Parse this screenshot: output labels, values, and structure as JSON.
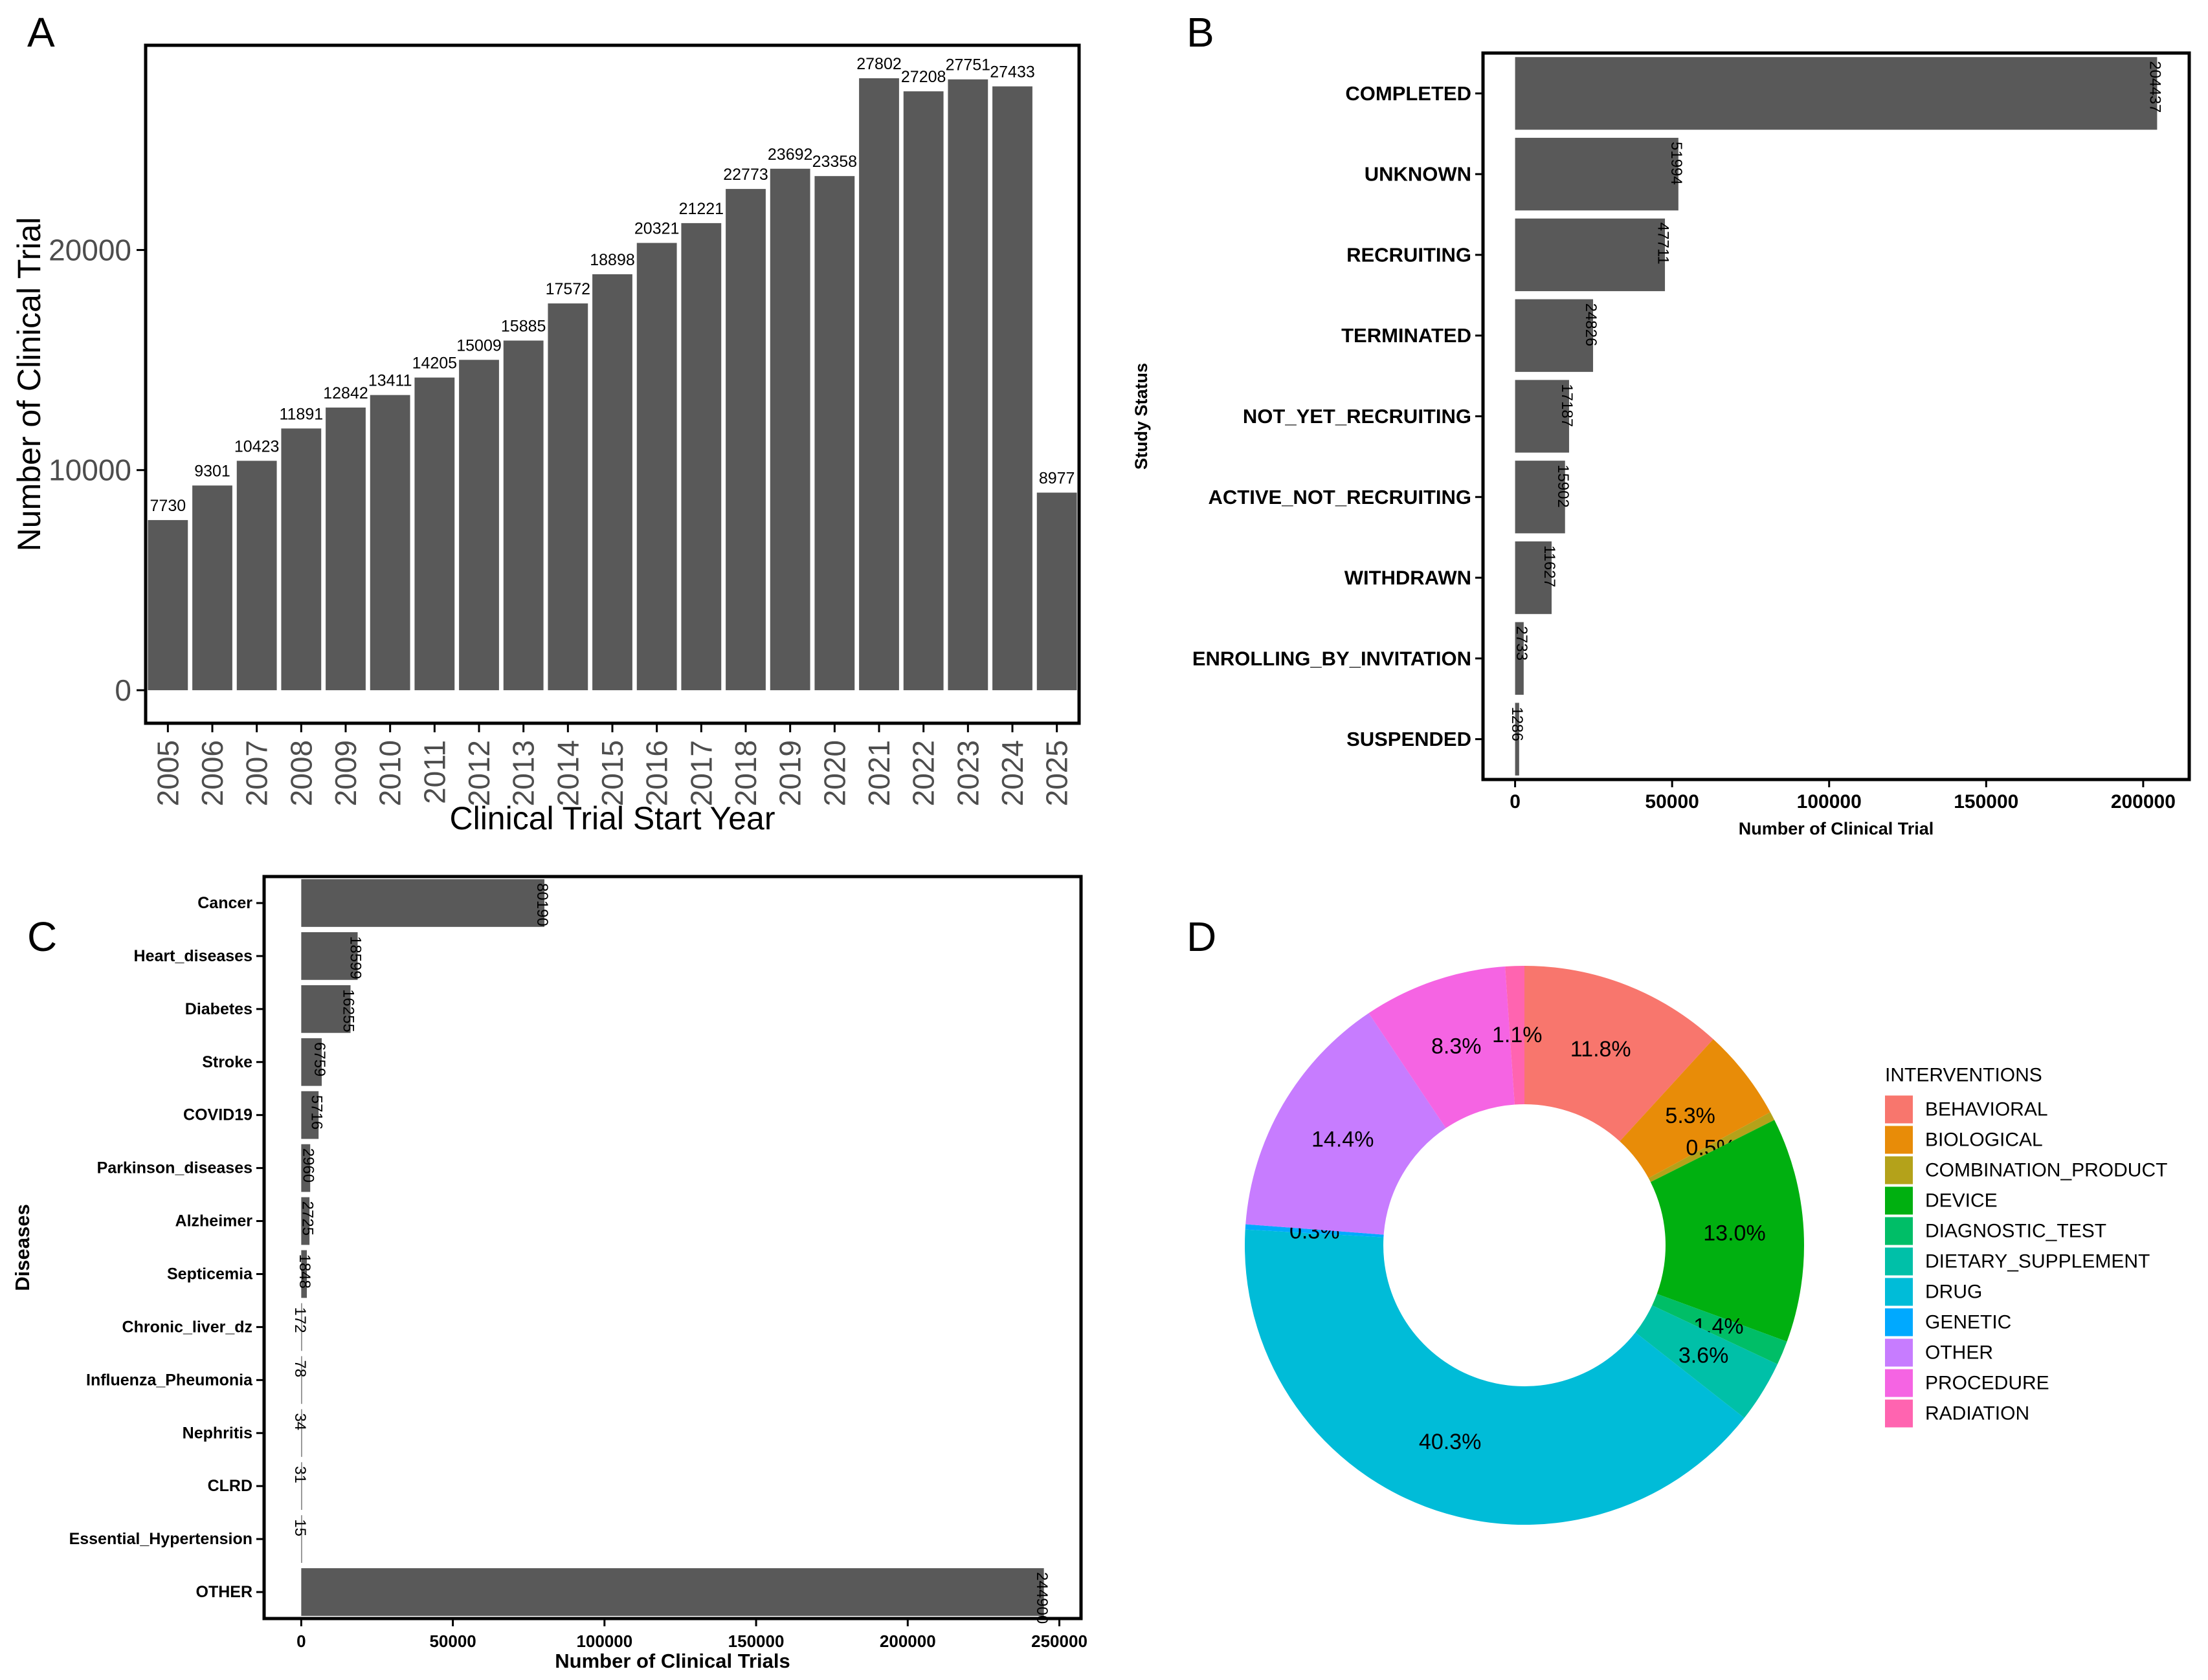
{
  "panels": {
    "a": "A",
    "b": "B",
    "c": "C",
    "d": "D"
  },
  "chart_data": [
    {
      "type": "bar",
      "panel": "A",
      "orientation": "vertical",
      "title": "",
      "xlabel": "Clinical Trial Start Year",
      "ylabel": "Number of Clinical Trial",
      "categories": [
        "2005",
        "2006",
        "2007",
        "2008",
        "2009",
        "2010",
        "2011",
        "2012",
        "2013",
        "2014",
        "2015",
        "2016",
        "2017",
        "2018",
        "2019",
        "2020",
        "2021",
        "2022",
        "2023",
        "2024",
        "2025"
      ],
      "values": [
        7730,
        9301,
        10423,
        11891,
        12842,
        13411,
        14205,
        15009,
        15885,
        17572,
        18898,
        20321,
        21221,
        22773,
        23692,
        23358,
        27802,
        27208,
        27751,
        27433,
        8977
      ],
      "data_labels": [
        "7730",
        "9301",
        "10423",
        "11891",
        "12842",
        "13411",
        "14205",
        "15009",
        "15885",
        "17572",
        "18898",
        "20321",
        "21221",
        "22773",
        "23692",
        "23358",
        "27802",
        "27208",
        "27751",
        "27433",
        "8977"
      ],
      "yticks": [
        0,
        10000,
        20000
      ],
      "ytick_labels": [
        "0",
        "10000",
        "20000"
      ],
      "ylim": [
        -1500,
        29300
      ],
      "bar_color": "#595959",
      "grid": false
    },
    {
      "type": "bar",
      "panel": "B",
      "orientation": "horizontal",
      "title": "",
      "xlabel": "Number of Clinical Trial",
      "ylabel": "Study Status",
      "categories": [
        "COMPLETED",
        "UNKNOWN",
        "RECRUITING",
        "TERMINATED",
        "NOT_YET_RECRUITING",
        "ACTIVE_NOT_RECRUITING",
        "WITHDRAWN",
        "ENROLLING_BY_INVITATION",
        "SUSPENDED"
      ],
      "values": [
        204437,
        51994,
        47711,
        24826,
        17187,
        15902,
        11627,
        2733,
        1286
      ],
      "data_labels": [
        "204437",
        "51994",
        "47711",
        "24826",
        "17187",
        "15902",
        "11627",
        "2733",
        "1286"
      ],
      "xticks": [
        0,
        50000,
        100000,
        150000,
        200000
      ],
      "xtick_labels": [
        "0",
        "50000",
        "100000",
        "150000",
        "200000"
      ],
      "xlim": [
        -10220,
        214660
      ],
      "bar_color": "#595959",
      "grid": false
    },
    {
      "type": "bar",
      "panel": "C",
      "orientation": "horizontal",
      "title": "",
      "xlabel": "Number of Clinical Trials",
      "ylabel": "Diseases",
      "categories": [
        "Cancer",
        "Heart_diseases",
        "Diabetes",
        "Stroke",
        "COVID19",
        "Parkinson_diseases",
        "Alzheimer",
        "Septicemia",
        "Chronic_liver_dz",
        "Influenza_Pheumonia",
        "Nephritis",
        "CLRD",
        "Essential_Hypertension",
        "OTHER"
      ],
      "values": [
        80190,
        18599,
        16255,
        6759,
        5716,
        2960,
        2725,
        1848,
        172,
        78,
        34,
        31,
        15,
        244900
      ],
      "data_labels": [
        "80190",
        "18599",
        "16255",
        "6759",
        "5716",
        "2960",
        "2725",
        "1848",
        "172",
        "78",
        "34",
        "31",
        "15",
        "244900"
      ],
      "xticks": [
        0,
        50000,
        100000,
        150000,
        200000,
        250000
      ],
      "xtick_labels": [
        "0",
        "50000",
        "100000",
        "150000",
        "200000",
        "250000"
      ],
      "xlim": [
        -12245,
        257145
      ],
      "bar_color": "#595959",
      "grid": false
    },
    {
      "type": "pie",
      "panel": "D",
      "donut": true,
      "title": "",
      "legend_title": "INTERVENTIONS",
      "legend_position": "right",
      "labels": [
        "BEHAVIORAL",
        "BIOLOGICAL",
        "COMBINATION_PRODUCT",
        "DEVICE",
        "DIAGNOSTIC_TEST",
        "DIETARY_SUPPLEMENT",
        "DRUG",
        "GENETIC",
        "OTHER",
        "PROCEDURE",
        "RADIATION"
      ],
      "values": [
        11.8,
        5.3,
        0.5,
        13.0,
        1.4,
        3.6,
        40.3,
        0.3,
        14.4,
        8.3,
        1.1
      ],
      "percent_labels": [
        "11.8%",
        "5.3%",
        "0.5%",
        "13.0%",
        "1.4%",
        "3.6%",
        "40.3%",
        "0.3%",
        "14.4%",
        "8.3%",
        "1.1%"
      ],
      "colors": [
        "#F8766D",
        "#E88C08",
        "#B4A21A",
        "#00B010",
        "#00BE67",
        "#00C0A8",
        "#00BCD8",
        "#00A9FF",
        "#C77CFF",
        "#F564E3",
        "#FF64B0"
      ]
    }
  ]
}
